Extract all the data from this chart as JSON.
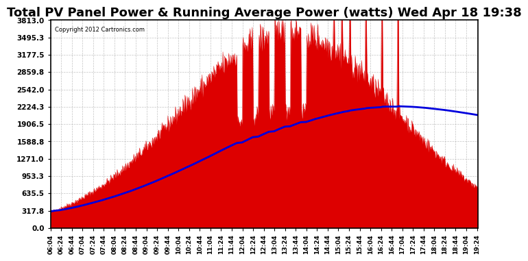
{
  "title": "Total PV Panel Power & Running Average Power (watts) Wed Apr 18 19:38",
  "copyright": "Copyright 2012 Cartronics.com",
  "y_ticks": [
    0.0,
    317.8,
    635.5,
    953.3,
    1271.0,
    1588.8,
    1906.5,
    2224.3,
    2542.0,
    2859.8,
    3177.5,
    3495.3,
    3813.0
  ],
  "y_max": 3813.0,
  "background_color": "#ffffff",
  "fill_color": "#dd0000",
  "avg_line_color": "#0000dd",
  "grid_color": "#aaaaaa",
  "title_fontsize": 13,
  "x_start_hour": 6,
  "x_start_min": 4,
  "x_end_hour": 19,
  "x_end_min": 26,
  "total_minutes": 802
}
